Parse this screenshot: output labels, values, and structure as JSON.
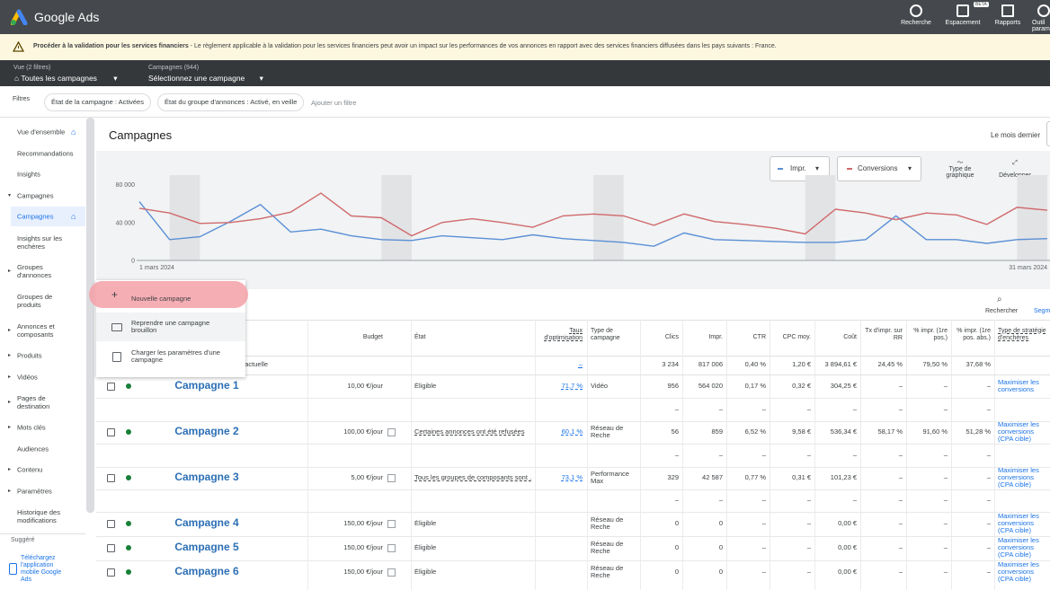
{
  "header": {
    "product": "Google Ads",
    "tools": [
      "Recherche",
      "Espacement",
      "Rapports",
      "Outil param"
    ],
    "beta": "BÊTA"
  },
  "banner": {
    "title": "Procéder à la validation pour les services financiers",
    "text": "- Le règlement applicable à la validation pour les services financiers peut avoir un impact sur les performances de vos annonces en rapport avec des services financiers diffusées dans les pays suivants : France."
  },
  "view_bar": {
    "view_label": "Vue (2 filtres)",
    "view": "Toutes les campagnes",
    "campaign_label": "Campagnes (944)",
    "campaign": "Sélectionnez une campagne"
  },
  "filters": {
    "label": "Filtres",
    "chips": [
      "État de la campagne : Activées",
      "État du groupe d'annonces : Activé, en veille"
    ],
    "add": "Ajouter un filtre"
  },
  "sidebar": {
    "items": [
      "Vue d'ensemble",
      "Recommandations",
      "Insights",
      "Campagnes",
      "Campagnes",
      "Insights sur les enchères",
      "Groupes d'annonces",
      "Groupes de produits",
      "Annonces et composants",
      "Produits",
      "Vidéos",
      "Pages de destination",
      "Mots clés",
      "Audiences",
      "Contenu",
      "Paramètres",
      "Historique des modifications"
    ],
    "suggested": "Suggéré",
    "app": "Téléchargez l'application mobile Google Ads"
  },
  "page": {
    "title": "Campagnes",
    "date_range": "Le mois dernier",
    "chart_buttons": [
      "Type de graphique",
      "Développer"
    ],
    "search": "Rechercher",
    "segment": "Segm"
  },
  "menu": [
    "Nouvelle campagne",
    "Reprendre une campagne brouillon",
    "Charger les paramètres d'une campagne"
  ],
  "chart_data": {
    "type": "line",
    "categories": [
      "1 mars 2024",
      null,
      null,
      null,
      null,
      null,
      null,
      null,
      null,
      null,
      null,
      null,
      null,
      null,
      null,
      null,
      null,
      null,
      null,
      null,
      null,
      null,
      null,
      null,
      null,
      null,
      null,
      null,
      null,
      null,
      "31 mars 2024"
    ],
    "series": [
      {
        "name": "Impr.",
        "color": "#5a8fd6",
        "values": [
          62000,
          22000,
          25000,
          41000,
          59000,
          30000,
          33000,
          26000,
          22000,
          21000,
          26000,
          24000,
          22000,
          27000,
          23000,
          21000,
          19000,
          15000,
          29000,
          22000,
          21000,
          20000,
          19000,
          19000,
          22000,
          47000,
          22000,
          22000,
          18000,
          22000,
          23000
        ]
      },
      {
        "name": "Conversions",
        "color": "#d0696b",
        "values": [
          55000,
          50000,
          39000,
          40000,
          44000,
          51000,
          71000,
          47000,
          45000,
          26000,
          40000,
          44000,
          40000,
          35000,
          47000,
          49000,
          47000,
          37000,
          49000,
          41000,
          38000,
          34000,
          28000,
          54000,
          50000,
          43000,
          50000,
          48000,
          38000,
          56000,
          53000
        ]
      }
    ],
    "ylim": [
      0,
      90000
    ],
    "yticks": [
      0,
      {
        "value": 40000,
        "label": "40 000"
      },
      {
        "value": 80000,
        "label": "80 000"
      }
    ]
  },
  "table": {
    "columns": [
      "Budget",
      "État",
      "Taux d'optimisation",
      "Type de campagne",
      "Clics",
      "Impr.",
      "CTR",
      "CPC moy.",
      "Coût",
      "Tx d'impr. sur RR",
      "% impr. (1re pos.)",
      "% impr. (1re pos. abs.)",
      "Type de stratégie d'enchères"
    ],
    "summary": {
      "label": "vue actuelle",
      "cells": [
        null,
        null,
        "–",
        null,
        "3 234",
        "817 006",
        "0,40 %",
        "1,20 €",
        "3 894,61 €",
        "24,45 %",
        "79,50 %",
        "37,68 %",
        null
      ]
    },
    "rows": [
      {
        "name": "Campagne 1",
        "cells": [
          "10,00 €/jour",
          "Éligible",
          "71,7 %",
          "Vidéo",
          "956",
          "564 020",
          "0,17 %",
          "0,32 €",
          "304,25 €",
          "–",
          "–",
          "–",
          "Maximiser les conversions"
        ]
      },
      {
        "name": null,
        "cells": [
          null,
          null,
          null,
          null,
          "–",
          "–",
          "–",
          "–",
          "–",
          "–",
          "–",
          "–",
          null
        ]
      },
      {
        "name": "Campagne 2",
        "cells": [
          "100,00 €/jour",
          "Certaines annonces ont été refusées",
          "60,1 %",
          "Réseau de Reche",
          "56",
          "859",
          "6,52 %",
          "9,58 €",
          "536,34 €",
          "58,17 %",
          "91,60 %",
          "51,28 %",
          "Maximiser les conversions (CPA cible)"
        ]
      },
      {
        "name": null,
        "cells": [
          null,
          null,
          null,
          null,
          "–",
          "–",
          "–",
          "–",
          "–",
          "–",
          "–",
          "–",
          null
        ]
      },
      {
        "name": "Campagne 3",
        "cells": [
          "5,00 €/jour",
          "Tous les groupes de composants sont …",
          "73,1 %",
          "Performance Max",
          "329",
          "42 587",
          "0,77 %",
          "0,31 €",
          "101,23 €",
          "–",
          "–",
          "–",
          "Maximiser les conversions (CPA cible)"
        ]
      },
      {
        "name": null,
        "cells": [
          null,
          null,
          null,
          null,
          "–",
          "–",
          "–",
          "–",
          "–",
          "–",
          "–",
          "–",
          null
        ]
      },
      {
        "name": "Campagne 4",
        "cells": [
          "150,00 €/jour",
          "Éligible",
          null,
          "Réseau de Reche",
          "0",
          "0",
          "–",
          "–",
          "0,00 €",
          "–",
          "–",
          "–",
          "Maximiser les conversions (CPA cible)"
        ]
      },
      {
        "name": "Campagne 5",
        "cells": [
          "150,00 €/jour",
          "Éligible",
          null,
          "Réseau de Reche",
          "0",
          "0",
          "–",
          "–",
          "0,00 €",
          "–",
          "–",
          "–",
          "Maximiser les conversions (CPA cible)"
        ]
      },
      {
        "name": "Campagne 6",
        "cells": [
          "150,00 €/jour",
          "Éligible",
          null,
          "Réseau de Reche",
          "0",
          "0",
          "–",
          "–",
          "0,00 €",
          "–",
          "–",
          "–",
          "Maximiser les conversions (CPA cible)"
        ]
      }
    ]
  }
}
